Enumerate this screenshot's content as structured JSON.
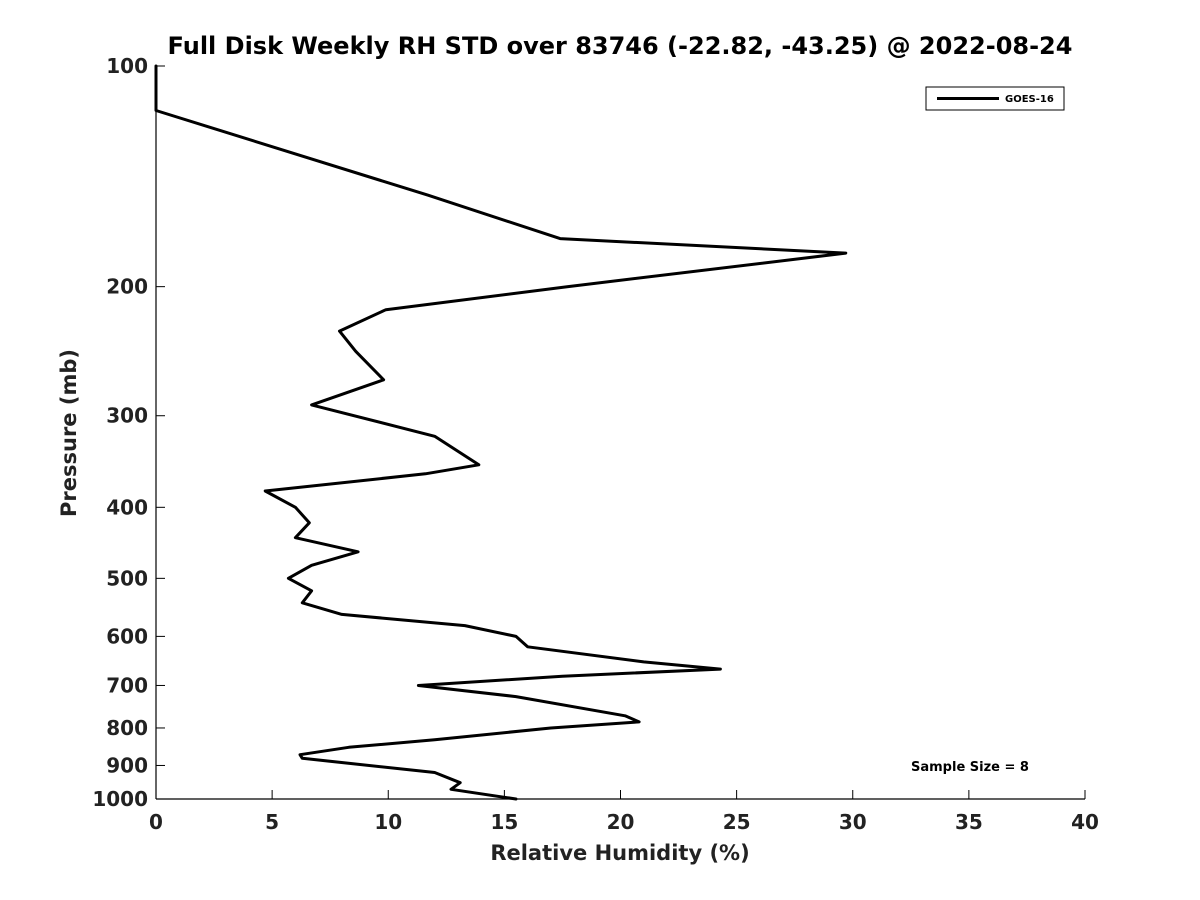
{
  "chart_data": {
    "type": "line",
    "title": "Full Disk Weekly RH STD over 83746 (-22.82, -43.25) @ 2022-08-24",
    "xlabel": "Relative Humidity (%)",
    "ylabel": "Pressure (mb)",
    "xlim": [
      0,
      40
    ],
    "ylim": [
      1000,
      100
    ],
    "y_scale": "log",
    "x_ticks": [
      "0",
      "5",
      "10",
      "15",
      "20",
      "25",
      "30",
      "35",
      "40"
    ],
    "y_ticks": [
      "100",
      "200",
      "300",
      "400",
      "500",
      "600",
      "700",
      "800",
      "900",
      "1000"
    ],
    "grid": false,
    "legend_position": "top-right",
    "series": [
      {
        "name": "GOES-16",
        "color": "#000000",
        "points": [
          [
            0.0,
            100
          ],
          [
            0.0,
            115
          ],
          [
            11.7,
            150
          ],
          [
            17.4,
            172
          ],
          [
            29.7,
            180
          ],
          [
            17.7,
            200
          ],
          [
            9.9,
            215
          ],
          [
            7.9,
            230
          ],
          [
            8.6,
            245
          ],
          [
            9.8,
            268
          ],
          [
            6.7,
            290
          ],
          [
            12.0,
            320
          ],
          [
            13.9,
            350
          ],
          [
            11.6,
            360
          ],
          [
            4.7,
            380
          ],
          [
            6.0,
            400
          ],
          [
            6.6,
            420
          ],
          [
            6.0,
            440
          ],
          [
            8.7,
            460
          ],
          [
            6.7,
            480
          ],
          [
            5.7,
            500
          ],
          [
            6.7,
            520
          ],
          [
            6.3,
            540
          ],
          [
            8.0,
            560
          ],
          [
            13.3,
            580
          ],
          [
            15.5,
            600
          ],
          [
            16.0,
            620
          ],
          [
            21.0,
            650
          ],
          [
            24.3,
            665
          ],
          [
            17.5,
            680
          ],
          [
            11.3,
            700
          ],
          [
            15.5,
            725
          ],
          [
            20.2,
            770
          ],
          [
            20.8,
            785
          ],
          [
            17.0,
            800
          ],
          [
            12.0,
            830
          ],
          [
            8.3,
            850
          ],
          [
            6.2,
            870
          ],
          [
            6.3,
            880
          ],
          [
            12.0,
            920
          ],
          [
            13.1,
            950
          ],
          [
            12.7,
            970
          ],
          [
            15.5,
            1000
          ]
        ]
      }
    ],
    "annotations": [
      "Sample Size = 8"
    ]
  }
}
